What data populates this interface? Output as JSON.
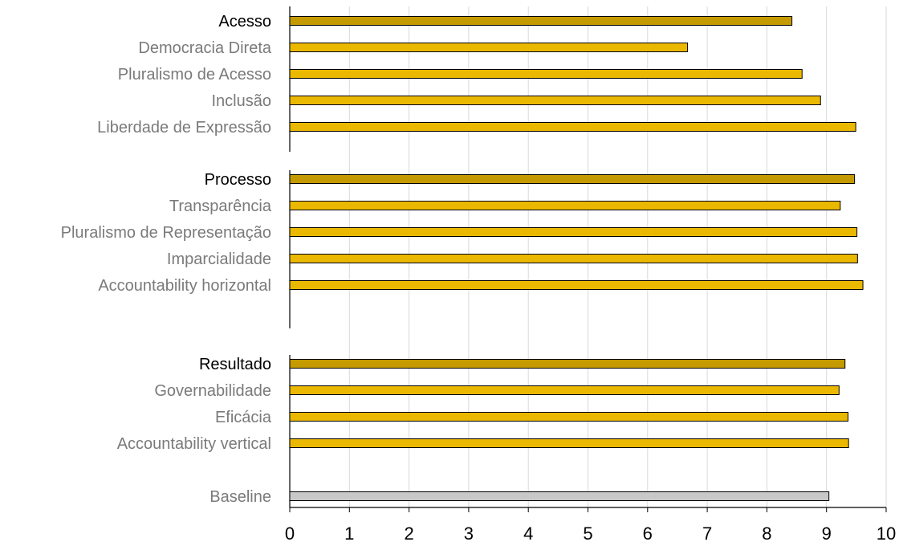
{
  "chart_data": {
    "type": "bar",
    "orientation": "horizontal",
    "xlim": [
      0,
      10
    ],
    "x_ticks": [
      "0",
      "1",
      "2",
      "3",
      "4",
      "5",
      "6",
      "7",
      "8",
      "9",
      "10"
    ],
    "grid": true,
    "colors": {
      "group": "#C49A00",
      "category": "#EBB800",
      "baseline": "#C8C8C8",
      "outline": "#000000",
      "grid": "#D9D9D9"
    },
    "groups": [
      {
        "label": "Acesso",
        "value": 8.42,
        "items": [
          {
            "label": "Democracia Direta",
            "value": 6.67
          },
          {
            "label": "Pluralismo de Acesso",
            "value": 8.59
          },
          {
            "label": "Inclusão",
            "value": 8.9
          },
          {
            "label": "Liberdade de Expressão",
            "value": 9.49
          }
        ]
      },
      {
        "label": "Processo",
        "value": 9.47,
        "items": [
          {
            "label": "Transparência",
            "value": 9.23
          },
          {
            "label": "Pluralismo de Representação",
            "value": 9.51
          },
          {
            "label": "Imparcialidade",
            "value": 9.52
          },
          {
            "label": "Accountability horizontal",
            "value": 9.61
          }
        ]
      },
      {
        "label": "Resultado",
        "value": 9.31,
        "items": [
          {
            "label": "Governabilidade",
            "value": 9.21
          },
          {
            "label": "Eficácia",
            "value": 9.36
          },
          {
            "label": "Accountability vertical",
            "value": 9.37
          }
        ]
      }
    ],
    "baseline": {
      "label": "Baseline",
      "value": 9.04
    }
  }
}
